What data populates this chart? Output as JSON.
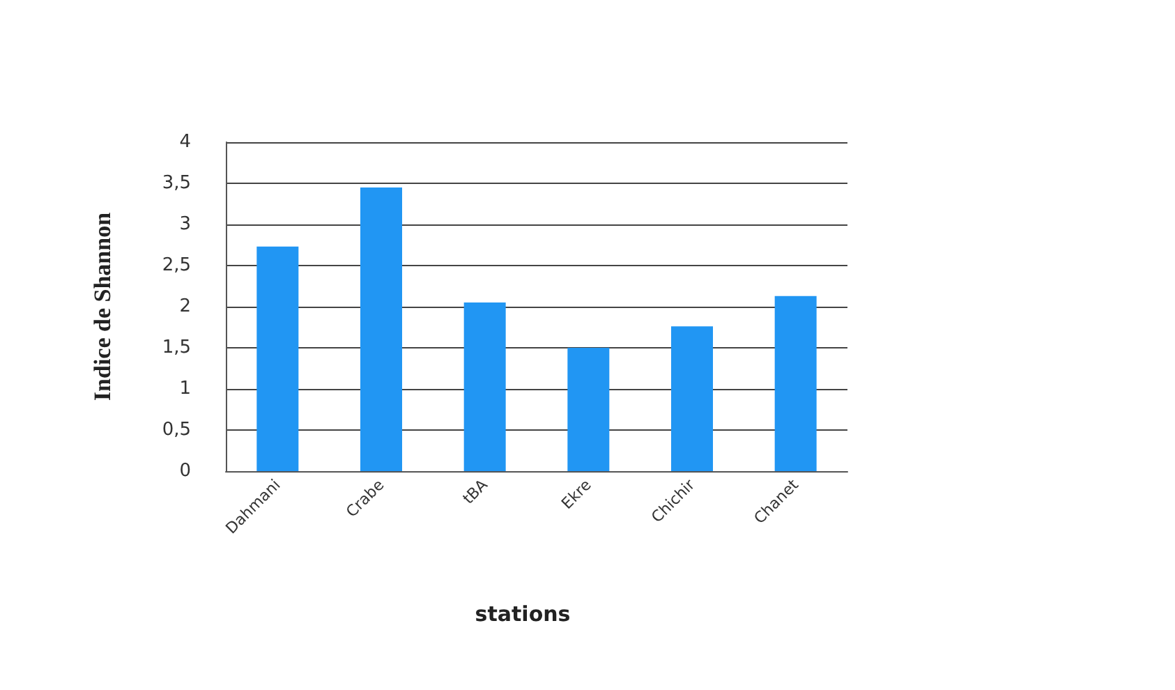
{
  "chart_data": {
    "type": "bar",
    "xlabel": "stations",
    "ylabel": "Indice de Shannon",
    "categories": [
      "Dahmani",
      "Crabe",
      "tBA",
      "Ekre",
      "Chichir",
      "Chanet"
    ],
    "values": [
      2.73,
      3.45,
      2.05,
      1.5,
      1.76,
      2.13
    ],
    "color": "#2196f3",
    "ylim": [
      0,
      4
    ],
    "yticks": [
      {
        "value": 0,
        "label": "0"
      },
      {
        "value": 0.5,
        "label": "0,5"
      },
      {
        "value": 1,
        "label": "1"
      },
      {
        "value": 1.5,
        "label": "1,5"
      },
      {
        "value": 2,
        "label": "2"
      },
      {
        "value": 2.5,
        "label": "2,5"
      },
      {
        "value": 3,
        "label": "3"
      },
      {
        "value": 3.5,
        "label": "3,5"
      },
      {
        "value": 4,
        "label": "4"
      }
    ],
    "grid": true
  }
}
